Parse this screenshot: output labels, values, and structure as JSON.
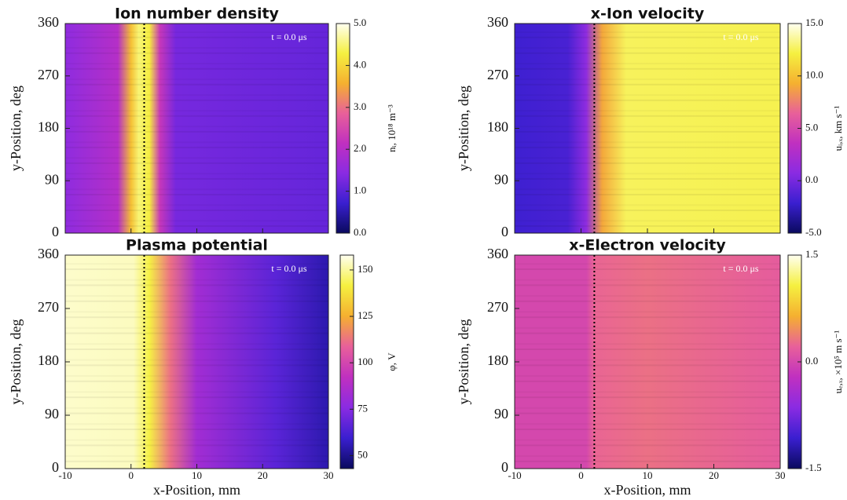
{
  "chart_data": [
    {
      "type": "heatmap",
      "title": "Ion number density",
      "ylabel": "y-Position, deg",
      "annotation": "t = 0.0 μs",
      "xlim": [
        -10,
        30
      ],
      "xticks": [
        -10,
        0,
        10,
        20,
        30
      ],
      "ylim": [
        0,
        360
      ],
      "yticks": [
        0,
        90,
        180,
        270,
        360
      ],
      "vline": 2,
      "colorbar_label": "nᵢ, 10¹⁸ m⁻³",
      "clim": [
        0,
        5
      ],
      "cticks": [
        {
          "value": 0,
          "label": "0.0"
        },
        {
          "value": 1,
          "label": "1.0"
        },
        {
          "value": 2,
          "label": "2.0"
        },
        {
          "value": 3,
          "label": "3.0"
        },
        {
          "value": 4,
          "label": "4.0"
        },
        {
          "value": 5,
          "label": "5.0"
        }
      ],
      "colormap": [
        "#0a0a5e",
        "#3a1fd0",
        "#8a2be2",
        "#c030c0",
        "#e8609a",
        "#f5b030",
        "#f5f040",
        "#fffff0"
      ]
    },
    {
      "type": "heatmap",
      "title": "x-Ion velocity",
      "ylabel": "y-Position, deg",
      "annotation": "t = 0.0 μs",
      "xlim": [
        -10,
        30
      ],
      "xticks": [
        -10,
        0,
        10,
        20,
        30
      ],
      "ylim": [
        0,
        360
      ],
      "yticks": [
        0,
        90,
        180,
        270,
        360
      ],
      "vline": 2,
      "colorbar_label": "uᵢ,ₓ, km s⁻¹",
      "clim": [
        -5,
        15
      ],
      "cticks": [
        {
          "value": -5,
          "label": "-5.0"
        },
        {
          "value": 0,
          "label": "0.0"
        },
        {
          "value": 5,
          "label": "5.0"
        },
        {
          "value": 10,
          "label": "10.0"
        },
        {
          "value": 15,
          "label": "15.0"
        }
      ],
      "colormap": [
        "#0a0a5e",
        "#3a1fd0",
        "#8a2be2",
        "#c030c0",
        "#e8609a",
        "#f5b030",
        "#f5f040",
        "#fffff0"
      ]
    },
    {
      "type": "heatmap",
      "title": "Plasma potential",
      "ylabel": "y-Position, deg",
      "xlabel": "x-Position, mm",
      "annotation": "t = 0.0 μs",
      "xlim": [
        -10,
        30
      ],
      "xticks": [
        -10,
        0,
        10,
        20,
        30
      ],
      "ylim": [
        0,
        360
      ],
      "yticks": [
        0,
        90,
        180,
        270,
        360
      ],
      "vline": 2,
      "colorbar_label": "φ, V",
      "clim": [
        43,
        158
      ],
      "cticks": [
        50,
        75,
        100,
        125,
        150
      ],
      "colormap": [
        "#0a0a5e",
        "#3a1fd0",
        "#8a2be2",
        "#c030c0",
        "#e8609a",
        "#f5b030",
        "#f5f040",
        "#fffff0"
      ]
    },
    {
      "type": "heatmap",
      "title": "x-Electron velocity",
      "ylabel": "y-Position, deg",
      "xlabel": "x-Position, mm",
      "annotation": "t = 0.0 μs",
      "xlim": [
        -10,
        30
      ],
      "xticks": [
        -10,
        0,
        10,
        20,
        30
      ],
      "ylim": [
        0,
        360
      ],
      "yticks": [
        0,
        90,
        180,
        270,
        360
      ],
      "vline": 2,
      "colorbar_label": "uₑ,ₓ, ×10⁵ m s⁻¹",
      "clim": [
        -1.5,
        1.5
      ],
      "cticks": [
        {
          "value": -1.5,
          "label": "-1.5"
        },
        {
          "value": 0,
          "label": "0.0"
        },
        {
          "value": 1.5,
          "label": "1.5"
        }
      ],
      "colormap": [
        "#0a0a5e",
        "#3a1fd0",
        "#8a2be2",
        "#c030c0",
        "#e8609a",
        "#f5b030",
        "#f5f040",
        "#fffff0"
      ]
    }
  ]
}
